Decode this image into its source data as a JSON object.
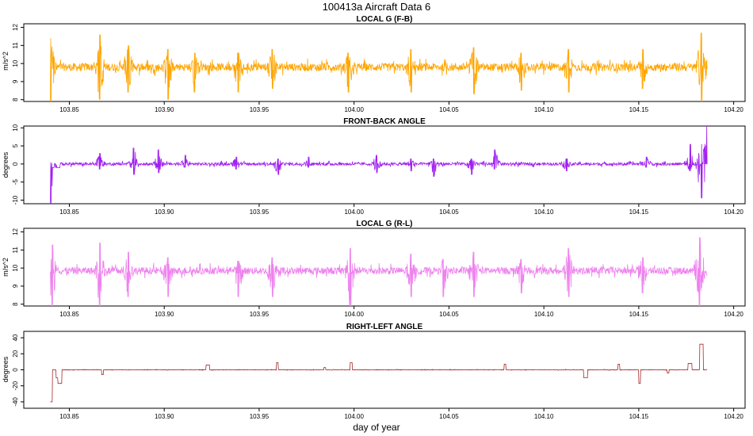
{
  "figure": {
    "title": "100413a   Aircraft Data 6",
    "xlabel": "day of year"
  },
  "chart_data": [
    {
      "type": "line",
      "title": "LOCAL G (F-B)",
      "ylabel": "m/s^2",
      "color": "#FFA500",
      "xlim": [
        103.826,
        104.206
      ],
      "ylim": [
        7.9,
        12.2
      ],
      "xticks": [
        "103.85",
        "103.90",
        "103.95",
        "104.00",
        "104.05",
        "104.10",
        "104.15",
        "104.20"
      ],
      "yticks": [
        "8",
        "9",
        "10",
        "11",
        "12"
      ],
      "series": [
        {
          "x_range": [
            103.84,
            104.186
          ],
          "baseline": 9.8,
          "noise": 0.22,
          "spikes": [
            {
              "x": 103.84,
              "min": 7.9,
              "max": 11.4
            },
            {
              "x": 103.866,
              "min": 8.0,
              "max": 11.6
            },
            {
              "x": 103.881,
              "min": 8.4,
              "max": 11.0
            },
            {
              "x": 103.902,
              "min": 8.0,
              "max": 10.8
            },
            {
              "x": 103.916,
              "min": 8.4,
              "max": 10.6
            },
            {
              "x": 103.939,
              "min": 8.4,
              "max": 10.6
            },
            {
              "x": 103.957,
              "min": 8.6,
              "max": 10.8
            },
            {
              "x": 103.997,
              "min": 8.4,
              "max": 10.6
            },
            {
              "x": 104.03,
              "min": 8.4,
              "max": 10.8
            },
            {
              "x": 104.063,
              "min": 8.3,
              "max": 10.9
            },
            {
              "x": 104.088,
              "min": 8.5,
              "max": 10.6
            },
            {
              "x": 104.113,
              "min": 8.4,
              "max": 10.8
            },
            {
              "x": 104.152,
              "min": 8.6,
              "max": 10.8
            },
            {
              "x": 104.183,
              "min": 7.9,
              "max": 11.7
            }
          ]
        }
      ]
    },
    {
      "type": "line",
      "title": "FRONT-BACK ANGLE",
      "ylabel": "degrees",
      "color": "#A020F0",
      "xlim": [
        103.826,
        104.206
      ],
      "ylim": [
        -11.0,
        10.5
      ],
      "xticks": [
        "103.85",
        "103.90",
        "103.95",
        "104.00",
        "104.05",
        "104.10",
        "104.15",
        "104.20"
      ],
      "yticks": [
        "-10",
        "-5",
        "0",
        "5",
        "10"
      ],
      "series": [
        {
          "x_range": [
            103.84,
            104.186
          ],
          "baseline": 0.0,
          "noise": 0.4,
          "steps": [
            {
              "x0": 103.84,
              "x1": 103.845,
              "value": -1.0
            }
          ],
          "spikes": [
            {
              "x": 103.84,
              "min": -11.0,
              "max": 0.5
            },
            {
              "x": 103.866,
              "min": -1.5,
              "max": 3.0
            },
            {
              "x": 103.884,
              "min": -3.0,
              "max": 4.5
            },
            {
              "x": 103.897,
              "min": -2.5,
              "max": 4.0
            },
            {
              "x": 103.911,
              "min": -1.0,
              "max": 2.5
            },
            {
              "x": 103.938,
              "min": -1.5,
              "max": 2.0
            },
            {
              "x": 103.96,
              "min": -3.0,
              "max": 1.5
            },
            {
              "x": 103.976,
              "min": -1.0,
              "max": 2.0
            },
            {
              "x": 104.012,
              "min": -2.5,
              "max": 2.5
            },
            {
              "x": 104.03,
              "min": -2.0,
              "max": 1.5
            },
            {
              "x": 104.042,
              "min": -3.5,
              "max": 1.5
            },
            {
              "x": 104.062,
              "min": -3.0,
              "max": 1.5
            },
            {
              "x": 104.074,
              "min": -1.5,
              "max": 4.0
            },
            {
              "x": 104.112,
              "min": -2.0,
              "max": 1.5
            },
            {
              "x": 104.154,
              "min": -1.0,
              "max": 2.0
            },
            {
              "x": 104.177,
              "min": -2.0,
              "max": 5.5
            },
            {
              "x": 104.183,
              "min": -9.5,
              "max": 5.5
            },
            {
              "x": 104.186,
              "min": 0.0,
              "max": 10.5
            }
          ]
        }
      ]
    },
    {
      "type": "line",
      "title": "LOCAL G (R-L)",
      "ylabel": "m/s^2",
      "color": "#EE82EE",
      "xlim": [
        103.826,
        104.206
      ],
      "ylim": [
        7.9,
        12.2
      ],
      "xticks": [
        "103.85",
        "103.90",
        "103.95",
        "104.00",
        "104.05",
        "104.10",
        "104.15",
        "104.20"
      ],
      "yticks": [
        "8",
        "9",
        "10",
        "11",
        "12"
      ],
      "series": [
        {
          "x_range": [
            103.84,
            104.186
          ],
          "baseline": 9.85,
          "noise": 0.2,
          "spikes": [
            {
              "x": 103.841,
              "min": 7.9,
              "max": 11.3
            },
            {
              "x": 103.866,
              "min": 7.9,
              "max": 11.4
            },
            {
              "x": 103.881,
              "min": 8.4,
              "max": 10.9
            },
            {
              "x": 103.902,
              "min": 8.4,
              "max": 10.6
            },
            {
              "x": 103.939,
              "min": 8.4,
              "max": 10.4
            },
            {
              "x": 103.957,
              "min": 8.4,
              "max": 10.6
            },
            {
              "x": 103.998,
              "min": 7.9,
              "max": 11.1
            },
            {
              "x": 104.03,
              "min": 8.4,
              "max": 10.8
            },
            {
              "x": 104.047,
              "min": 8.4,
              "max": 10.5
            },
            {
              "x": 104.063,
              "min": 8.4,
              "max": 10.9
            },
            {
              "x": 104.088,
              "min": 8.6,
              "max": 10.5
            },
            {
              "x": 104.113,
              "min": 8.4,
              "max": 11.1
            },
            {
              "x": 104.152,
              "min": 8.6,
              "max": 10.6
            },
            {
              "x": 104.182,
              "min": 7.9,
              "max": 11.7
            }
          ]
        }
      ]
    },
    {
      "type": "line",
      "title": "RIGHT-LEFT ANGLE",
      "ylabel": "degrees",
      "color": "#A52A2A",
      "xlim": [
        103.826,
        104.206
      ],
      "ylim": [
        -48,
        48
      ],
      "xticks": [
        "103.85",
        "103.90",
        "103.95",
        "104.00",
        "104.05",
        "104.10",
        "104.15",
        "104.20"
      ],
      "yticks": [
        "-40",
        "-20",
        "0",
        "20",
        "40"
      ],
      "series": [
        {
          "x_range": [
            103.84,
            104.186
          ],
          "baseline": 0.0,
          "noise": 0.3,
          "steps": [
            {
              "x0": 103.84,
              "x1": 103.841,
              "value": -40
            },
            {
              "x0": 103.843,
              "x1": 103.845,
              "value": -10
            },
            {
              "x0": 103.844,
              "x1": 103.846,
              "value": -17
            },
            {
              "x0": 103.867,
              "x1": 103.868,
              "value": -6
            },
            {
              "x0": 103.922,
              "x1": 103.924,
              "value": 6
            },
            {
              "x0": 103.959,
              "x1": 103.96,
              "value": 9
            },
            {
              "x0": 103.984,
              "x1": 103.985,
              "value": 3
            },
            {
              "x0": 103.998,
              "x1": 103.999,
              "value": 9
            },
            {
              "x0": 104.079,
              "x1": 104.08,
              "value": 7
            },
            {
              "x0": 104.121,
              "x1": 104.123,
              "value": -10
            },
            {
              "x0": 104.139,
              "x1": 104.14,
              "value": 7
            },
            {
              "x0": 104.15,
              "x1": 104.151,
              "value": -17
            },
            {
              "x0": 104.165,
              "x1": 104.166,
              "value": -4
            },
            {
              "x0": 104.176,
              "x1": 104.178,
              "value": 8
            },
            {
              "x0": 104.182,
              "x1": 104.184,
              "value": 32
            }
          ]
        }
      ]
    }
  ]
}
